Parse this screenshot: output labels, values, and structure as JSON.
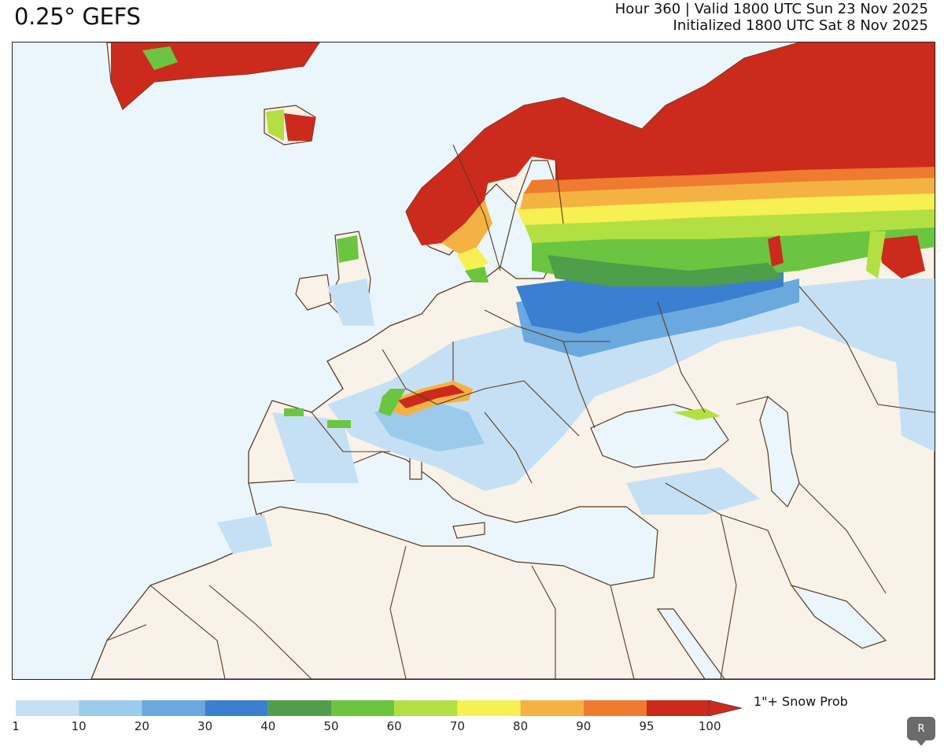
{
  "header": {
    "model": "0.25° GEFS",
    "valid_line": "Hour 360 | Valid 1800 UTC Sun 23 Nov 2025",
    "init_line": "Initialized 1800 UTC Sat 8 Nov 2025"
  },
  "colors": {
    "ocean": "#eaf6fc",
    "land": "#f8f2e8",
    "border": "#5a3a22",
    "bins": [
      "#c5e0f4",
      "#9ccaeb",
      "#6aa8de",
      "#3b7fd0",
      "#4e9e4a",
      "#6cc540",
      "#b3df42",
      "#f6f052",
      "#f4b243",
      "#ee7b2f",
      "#cc2a1c"
    ]
  },
  "legend": {
    "label": "1\"+ Snow Prob",
    "ticks": [
      "1",
      "10",
      "20",
      "30",
      "40",
      "50",
      "60",
      "70",
      "80",
      "90",
      "95",
      "100"
    ]
  },
  "controls": {
    "r_button": "R"
  }
}
